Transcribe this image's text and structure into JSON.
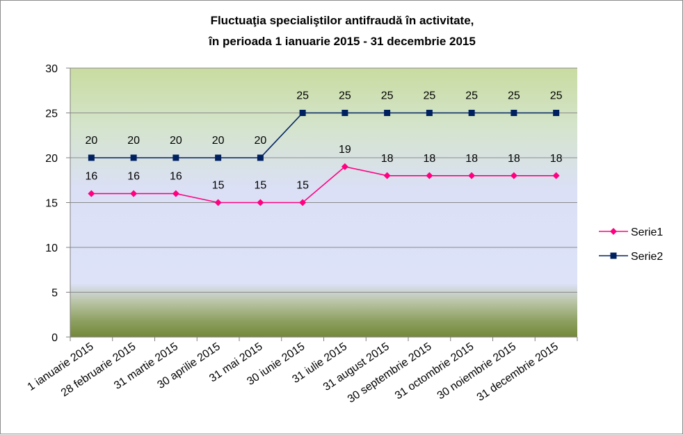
{
  "chart_data": {
    "type": "line",
    "title": [
      "Fluctuaţia specialiştilor antifraudă în activitate,",
      "în perioada 1 ianuarie  2015 - 31 decembrie 2015"
    ],
    "categories": [
      "1 ianuarie 2015",
      "28 februarie 2015",
      "31 martie 2015",
      "30 aprilie 2015",
      "31 mai 2015",
      "30 iunie 2015",
      "31 iulie 2015",
      "31 august 2015",
      "30 septembrie 2015",
      "31 octombrie 2015",
      "30 noiembrie 2015",
      "31 decembrie 2015"
    ],
    "series": [
      {
        "name": "Serie1",
        "values": [
          16,
          16,
          16,
          15,
          15,
          15,
          19,
          18,
          18,
          18,
          18,
          18
        ],
        "color": "#ff0080",
        "marker": "diamond"
      },
      {
        "name": "Serie2",
        "values": [
          20,
          20,
          20,
          20,
          20,
          25,
          25,
          25,
          25,
          25,
          25,
          25
        ],
        "color": "#002060",
        "marker": "square"
      }
    ],
    "ylim": [
      0,
      30
    ],
    "yticks": [
      0,
      5,
      10,
      15,
      20,
      25,
      30
    ],
    "grid": true,
    "legend": "right",
    "plot_background": "gradient green-top, lavender-middle, olive-bottom"
  }
}
